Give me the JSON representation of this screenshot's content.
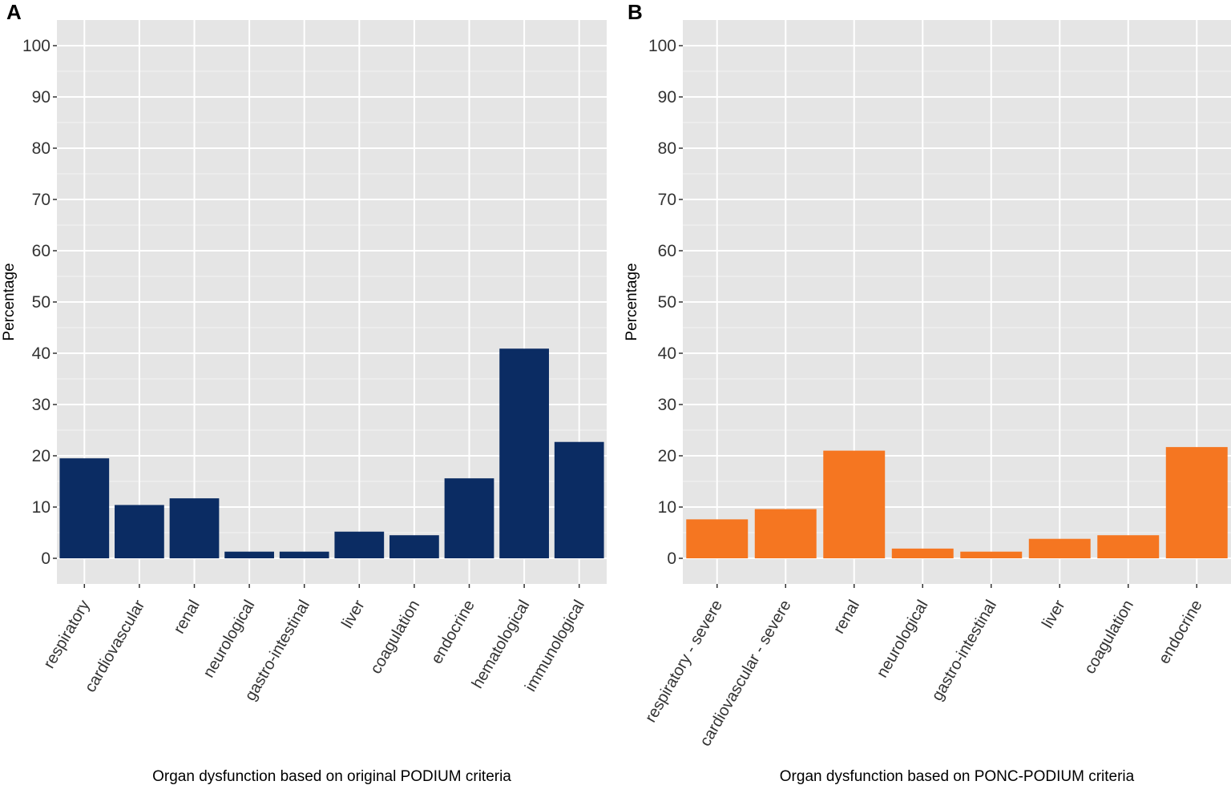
{
  "chart_data": [
    {
      "type": "bar",
      "panel": "A",
      "title": "",
      "xlabel": "Organ dysfunction based on original PODIUM criteria",
      "ylabel": "Percentage",
      "ylim": [
        -5,
        105
      ],
      "yticks": [
        0,
        10,
        20,
        30,
        40,
        50,
        60,
        70,
        80,
        90,
        100
      ],
      "grid": true,
      "bar_color": "#0b2c63",
      "categories": [
        "respiratory",
        "cardiovascular",
        "renal",
        "neurological",
        "gastro-intestinal",
        "liver",
        "coagulation",
        "endocrine",
        "hematological",
        "immunological"
      ],
      "values": [
        19.5,
        10.4,
        11.7,
        1.3,
        1.3,
        5.2,
        4.5,
        15.6,
        40.9,
        22.7
      ]
    },
    {
      "type": "bar",
      "panel": "B",
      "title": "",
      "xlabel": "Organ dysfunction based on PONC-PODIUM criteria",
      "ylabel": "Percentage",
      "ylim": [
        -5,
        105
      ],
      "yticks": [
        0,
        10,
        20,
        30,
        40,
        50,
        60,
        70,
        80,
        90,
        100
      ],
      "grid": true,
      "bar_color": "#f57621",
      "categories": [
        "respiratory - severe",
        "cardiovascular - severe",
        "renal",
        "neurological",
        "gastro-intestinal",
        "liver",
        "coagulation",
        "endocrine"
      ],
      "values": [
        7.6,
        9.6,
        21.0,
        1.9,
        1.3,
        3.8,
        4.5,
        21.7
      ]
    }
  ]
}
